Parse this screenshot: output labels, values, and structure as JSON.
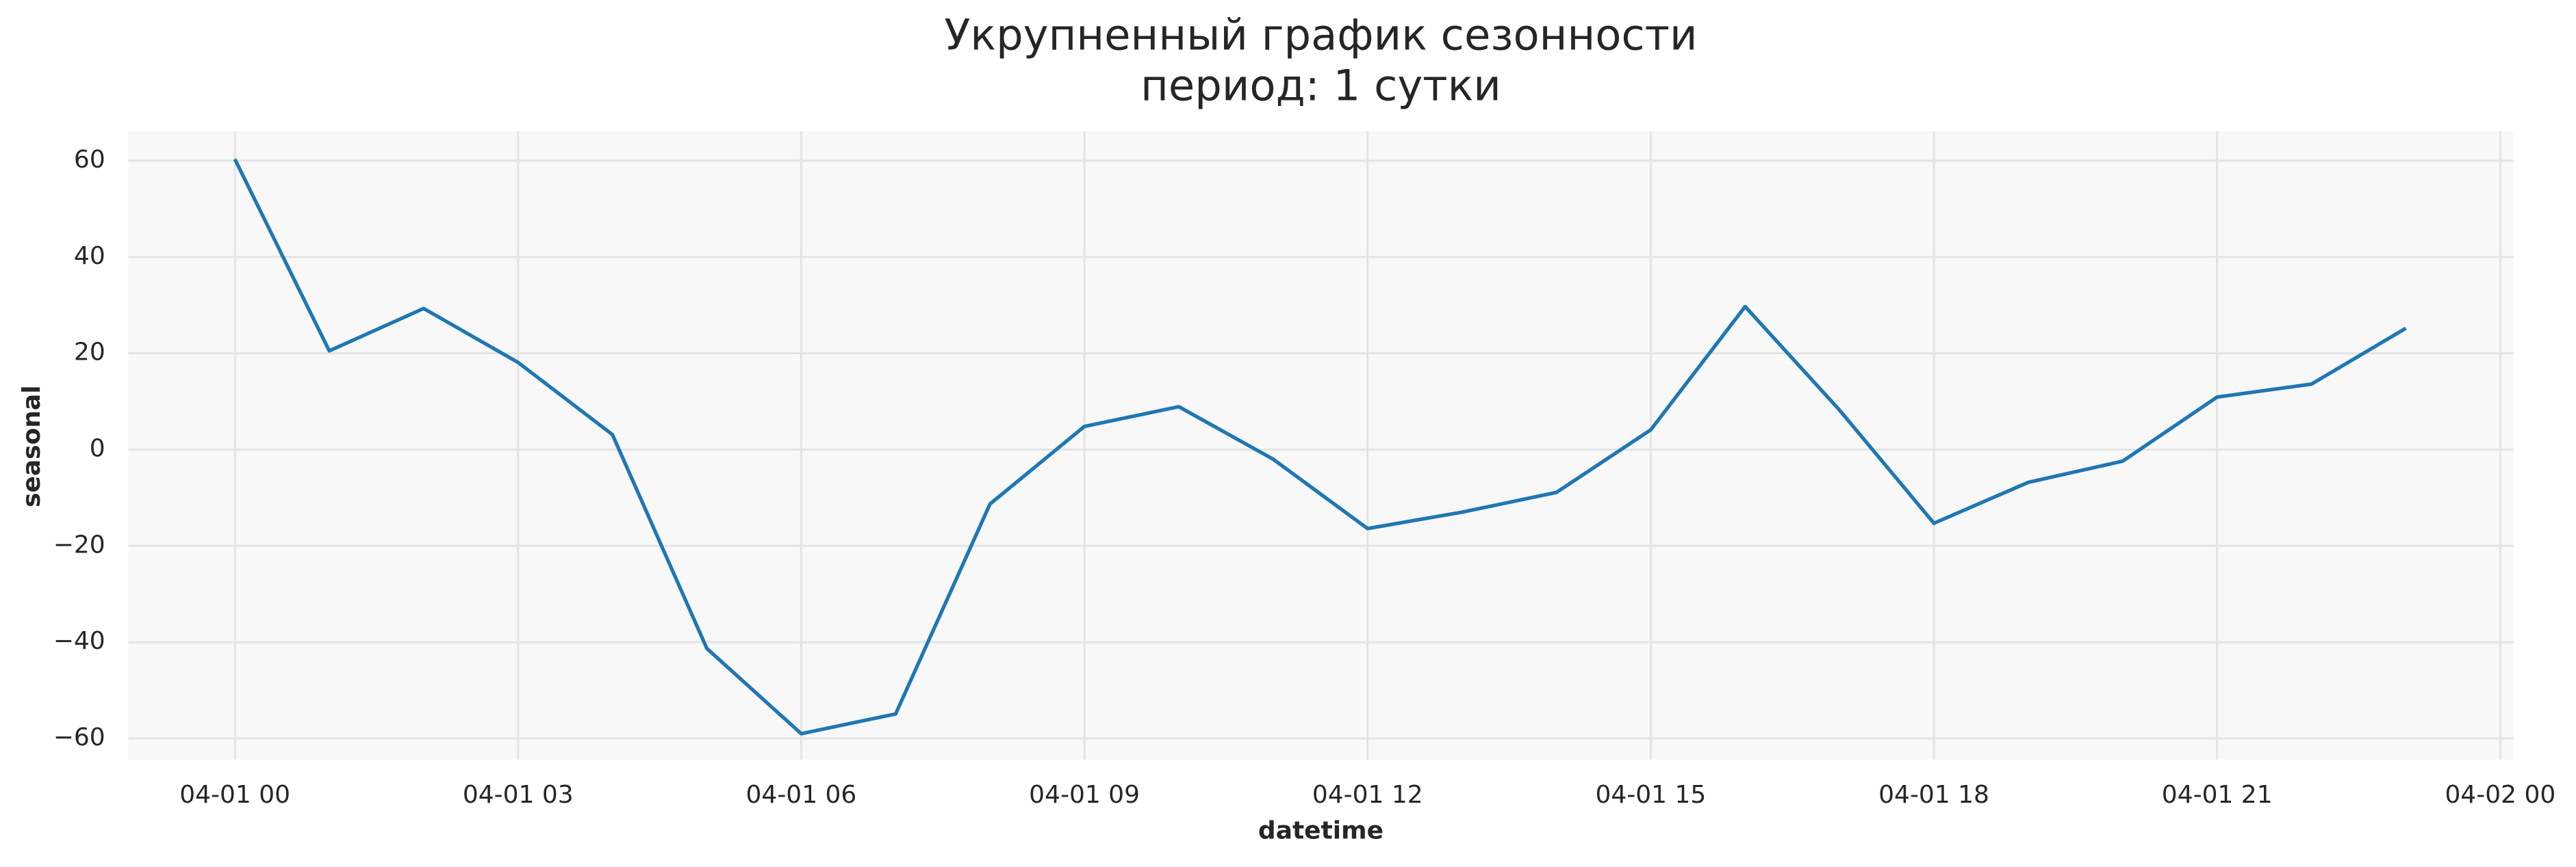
{
  "chart_data": {
    "type": "line",
    "title": [
      "Укрупненный график сезонности",
      "период: 1 сутки"
    ],
    "xlabel": "datetime",
    "ylabel": "seasonal",
    "x": [
      0,
      1,
      2,
      3,
      4,
      5,
      6,
      7,
      8,
      9,
      10,
      11,
      12,
      13,
      14,
      15,
      16,
      17,
      18,
      19,
      20,
      21,
      22,
      23
    ],
    "series": [
      {
        "name": "seasonal",
        "color": "#1f77b4",
        "values": [
          60.3,
          20.5,
          29.3,
          18.1,
          3.1,
          -41.3,
          -59,
          -54.9,
          -11.3,
          4.8,
          8.9,
          -2,
          -16.4,
          -13,
          -8.9,
          4.1,
          29.7,
          8.2,
          -15.3,
          -6.8,
          -2.4,
          10.9,
          13.6,
          25.2
        ]
      }
    ],
    "xlim": [
      -1.13,
      24.14
    ],
    "xticks": [
      {
        "value": 0,
        "label": "04-01 00"
      },
      {
        "value": 3,
        "label": "04-01 03"
      },
      {
        "value": 6,
        "label": "04-01 06"
      },
      {
        "value": 9,
        "label": "04-01 09"
      },
      {
        "value": 12,
        "label": "04-01 12"
      },
      {
        "value": 15,
        "label": "04-01 15"
      },
      {
        "value": 18,
        "label": "04-01 18"
      },
      {
        "value": 21,
        "label": "04-01 21"
      },
      {
        "value": 24,
        "label": "04-02 00"
      }
    ],
    "ylim": [
      -64.4,
      66.1
    ],
    "yticks": [
      {
        "value": -60,
        "label": "−60"
      },
      {
        "value": -40,
        "label": "−40"
      },
      {
        "value": -20,
        "label": "−20"
      },
      0,
      20,
      40,
      60
    ],
    "grid": true
  }
}
